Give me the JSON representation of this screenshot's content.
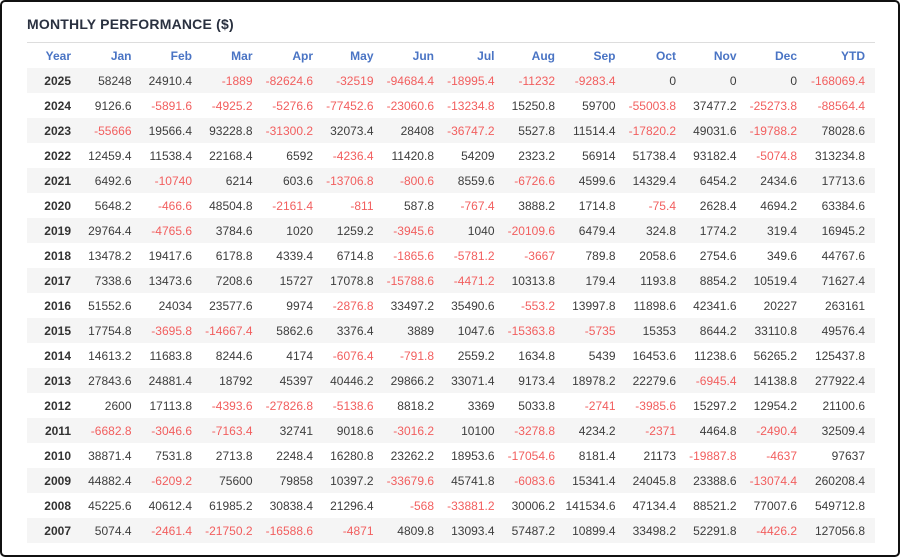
{
  "title": "MONTHLY PERFORMANCE ($)",
  "colors": {
    "header_blue": "#4a74c4",
    "negative_red": "#f25e5e",
    "positive_dark": "#3d3d3d",
    "row_stripe": "#f5f5f5",
    "title_dark": "#2a3140",
    "frame_border": "#111111"
  },
  "table": {
    "columns": [
      "Year",
      "Jan",
      "Feb",
      "Mar",
      "Apr",
      "May",
      "Jun",
      "Jul",
      "Aug",
      "Sep",
      "Oct",
      "Nov",
      "Dec",
      "YTD"
    ],
    "rows": [
      {
        "year": "2025",
        "values": [
          "58248",
          "24910.4",
          "-1889",
          "-82624.6",
          "-32519",
          "-94684.4",
          "-18995.4",
          "-11232",
          "-9283.4",
          "0",
          "0",
          "0",
          "-168069.4"
        ]
      },
      {
        "year": "2024",
        "values": [
          "9126.6",
          "-5891.6",
          "-4925.2",
          "-5276.6",
          "-77452.6",
          "-23060.6",
          "-13234.8",
          "15250.8",
          "59700",
          "-55003.8",
          "37477.2",
          "-25273.8",
          "-88564.4"
        ]
      },
      {
        "year": "2023",
        "values": [
          "-55666",
          "19566.4",
          "93228.8",
          "-31300.2",
          "32073.4",
          "28408",
          "-36747.2",
          "5527.8",
          "11514.4",
          "-17820.2",
          "49031.6",
          "-19788.2",
          "78028.6"
        ]
      },
      {
        "year": "2022",
        "values": [
          "12459.4",
          "11538.4",
          "22168.4",
          "6592",
          "-4236.4",
          "11420.8",
          "54209",
          "2323.2",
          "56914",
          "51738.4",
          "93182.4",
          "-5074.8",
          "313234.8"
        ]
      },
      {
        "year": "2021",
        "values": [
          "6492.6",
          "-10740",
          "6214",
          "603.6",
          "-13706.8",
          "-800.6",
          "8559.6",
          "-6726.6",
          "4599.6",
          "14329.4",
          "6454.2",
          "2434.6",
          "17713.6"
        ]
      },
      {
        "year": "2020",
        "values": [
          "5648.2",
          "-466.6",
          "48504.8",
          "-2161.4",
          "-811",
          "587.8",
          "-767.4",
          "3888.2",
          "1714.8",
          "-75.4",
          "2628.4",
          "4694.2",
          "63384.6"
        ]
      },
      {
        "year": "2019",
        "values": [
          "29764.4",
          "-4765.6",
          "3784.6",
          "1020",
          "1259.2",
          "-3945.6",
          "1040",
          "-20109.6",
          "6479.4",
          "324.8",
          "1774.2",
          "319.4",
          "16945.2"
        ]
      },
      {
        "year": "2018",
        "values": [
          "13478.2",
          "19417.6",
          "6178.8",
          "4339.4",
          "6714.8",
          "-1865.6",
          "-5781.2",
          "-3667",
          "789.8",
          "2058.6",
          "2754.6",
          "349.6",
          "44767.6"
        ]
      },
      {
        "year": "2017",
        "values": [
          "7338.6",
          "13473.6",
          "7208.6",
          "15727",
          "17078.8",
          "-15788.6",
          "-4471.2",
          "10313.8",
          "179.4",
          "1193.8",
          "8854.2",
          "10519.4",
          "71627.4"
        ]
      },
      {
        "year": "2016",
        "values": [
          "51552.6",
          "24034",
          "23577.6",
          "9974",
          "-2876.8",
          "33497.2",
          "35490.6",
          "-553.2",
          "13997.8",
          "11898.6",
          "42341.6",
          "20227",
          "263161"
        ]
      },
      {
        "year": "2015",
        "values": [
          "17754.8",
          "-3695.8",
          "-14667.4",
          "5862.6",
          "3376.4",
          "3889",
          "1047.6",
          "-15363.8",
          "-5735",
          "15353",
          "8644.2",
          "33110.8",
          "49576.4"
        ]
      },
      {
        "year": "2014",
        "values": [
          "14613.2",
          "11683.8",
          "8244.6",
          "4174",
          "-6076.4",
          "-791.8",
          "2559.2",
          "1634.8",
          "5439",
          "16453.6",
          "11238.6",
          "56265.2",
          "125437.8"
        ]
      },
      {
        "year": "2013",
        "values": [
          "27843.6",
          "24881.4",
          "18792",
          "45397",
          "40446.2",
          "29866.2",
          "33071.4",
          "9173.4",
          "18978.2",
          "22279.6",
          "-6945.4",
          "14138.8",
          "277922.4"
        ]
      },
      {
        "year": "2012",
        "values": [
          "2600",
          "17113.8",
          "-4393.6",
          "-27826.8",
          "-5138.6",
          "8818.2",
          "3369",
          "5033.8",
          "-2741",
          "-3985.6",
          "15297.2",
          "12954.2",
          "21100.6"
        ]
      },
      {
        "year": "2011",
        "values": [
          "-6682.8",
          "-3046.6",
          "-7163.4",
          "32741",
          "9018.6",
          "-3016.2",
          "10100",
          "-3278.8",
          "4234.2",
          "-2371",
          "4464.8",
          "-2490.4",
          "32509.4"
        ]
      },
      {
        "year": "2010",
        "values": [
          "38871.4",
          "7531.8",
          "2713.8",
          "2248.4",
          "16280.8",
          "23262.2",
          "18953.6",
          "-17054.6",
          "8181.4",
          "21173",
          "-19887.8",
          "-4637",
          "97637"
        ]
      },
      {
        "year": "2009",
        "values": [
          "44882.4",
          "-6209.2",
          "75600",
          "79858",
          "10397.2",
          "-33679.6",
          "45741.8",
          "-6083.6",
          "15341.4",
          "24045.8",
          "23388.6",
          "-13074.4",
          "260208.4"
        ]
      },
      {
        "year": "2008",
        "values": [
          "45225.6",
          "40612.4",
          "61985.2",
          "30838.4",
          "21296.4",
          "-568",
          "-33881.2",
          "30006.2",
          "141534.6",
          "47134.4",
          "88521.2",
          "77007.6",
          "549712.8"
        ]
      },
      {
        "year": "2007",
        "values": [
          "5074.4",
          "-2461.4",
          "-21750.2",
          "-16588.6",
          "-4871",
          "4809.8",
          "13093.4",
          "57487.2",
          "10899.4",
          "33498.2",
          "52291.8",
          "-4426.2",
          "127056.8"
        ]
      }
    ]
  }
}
